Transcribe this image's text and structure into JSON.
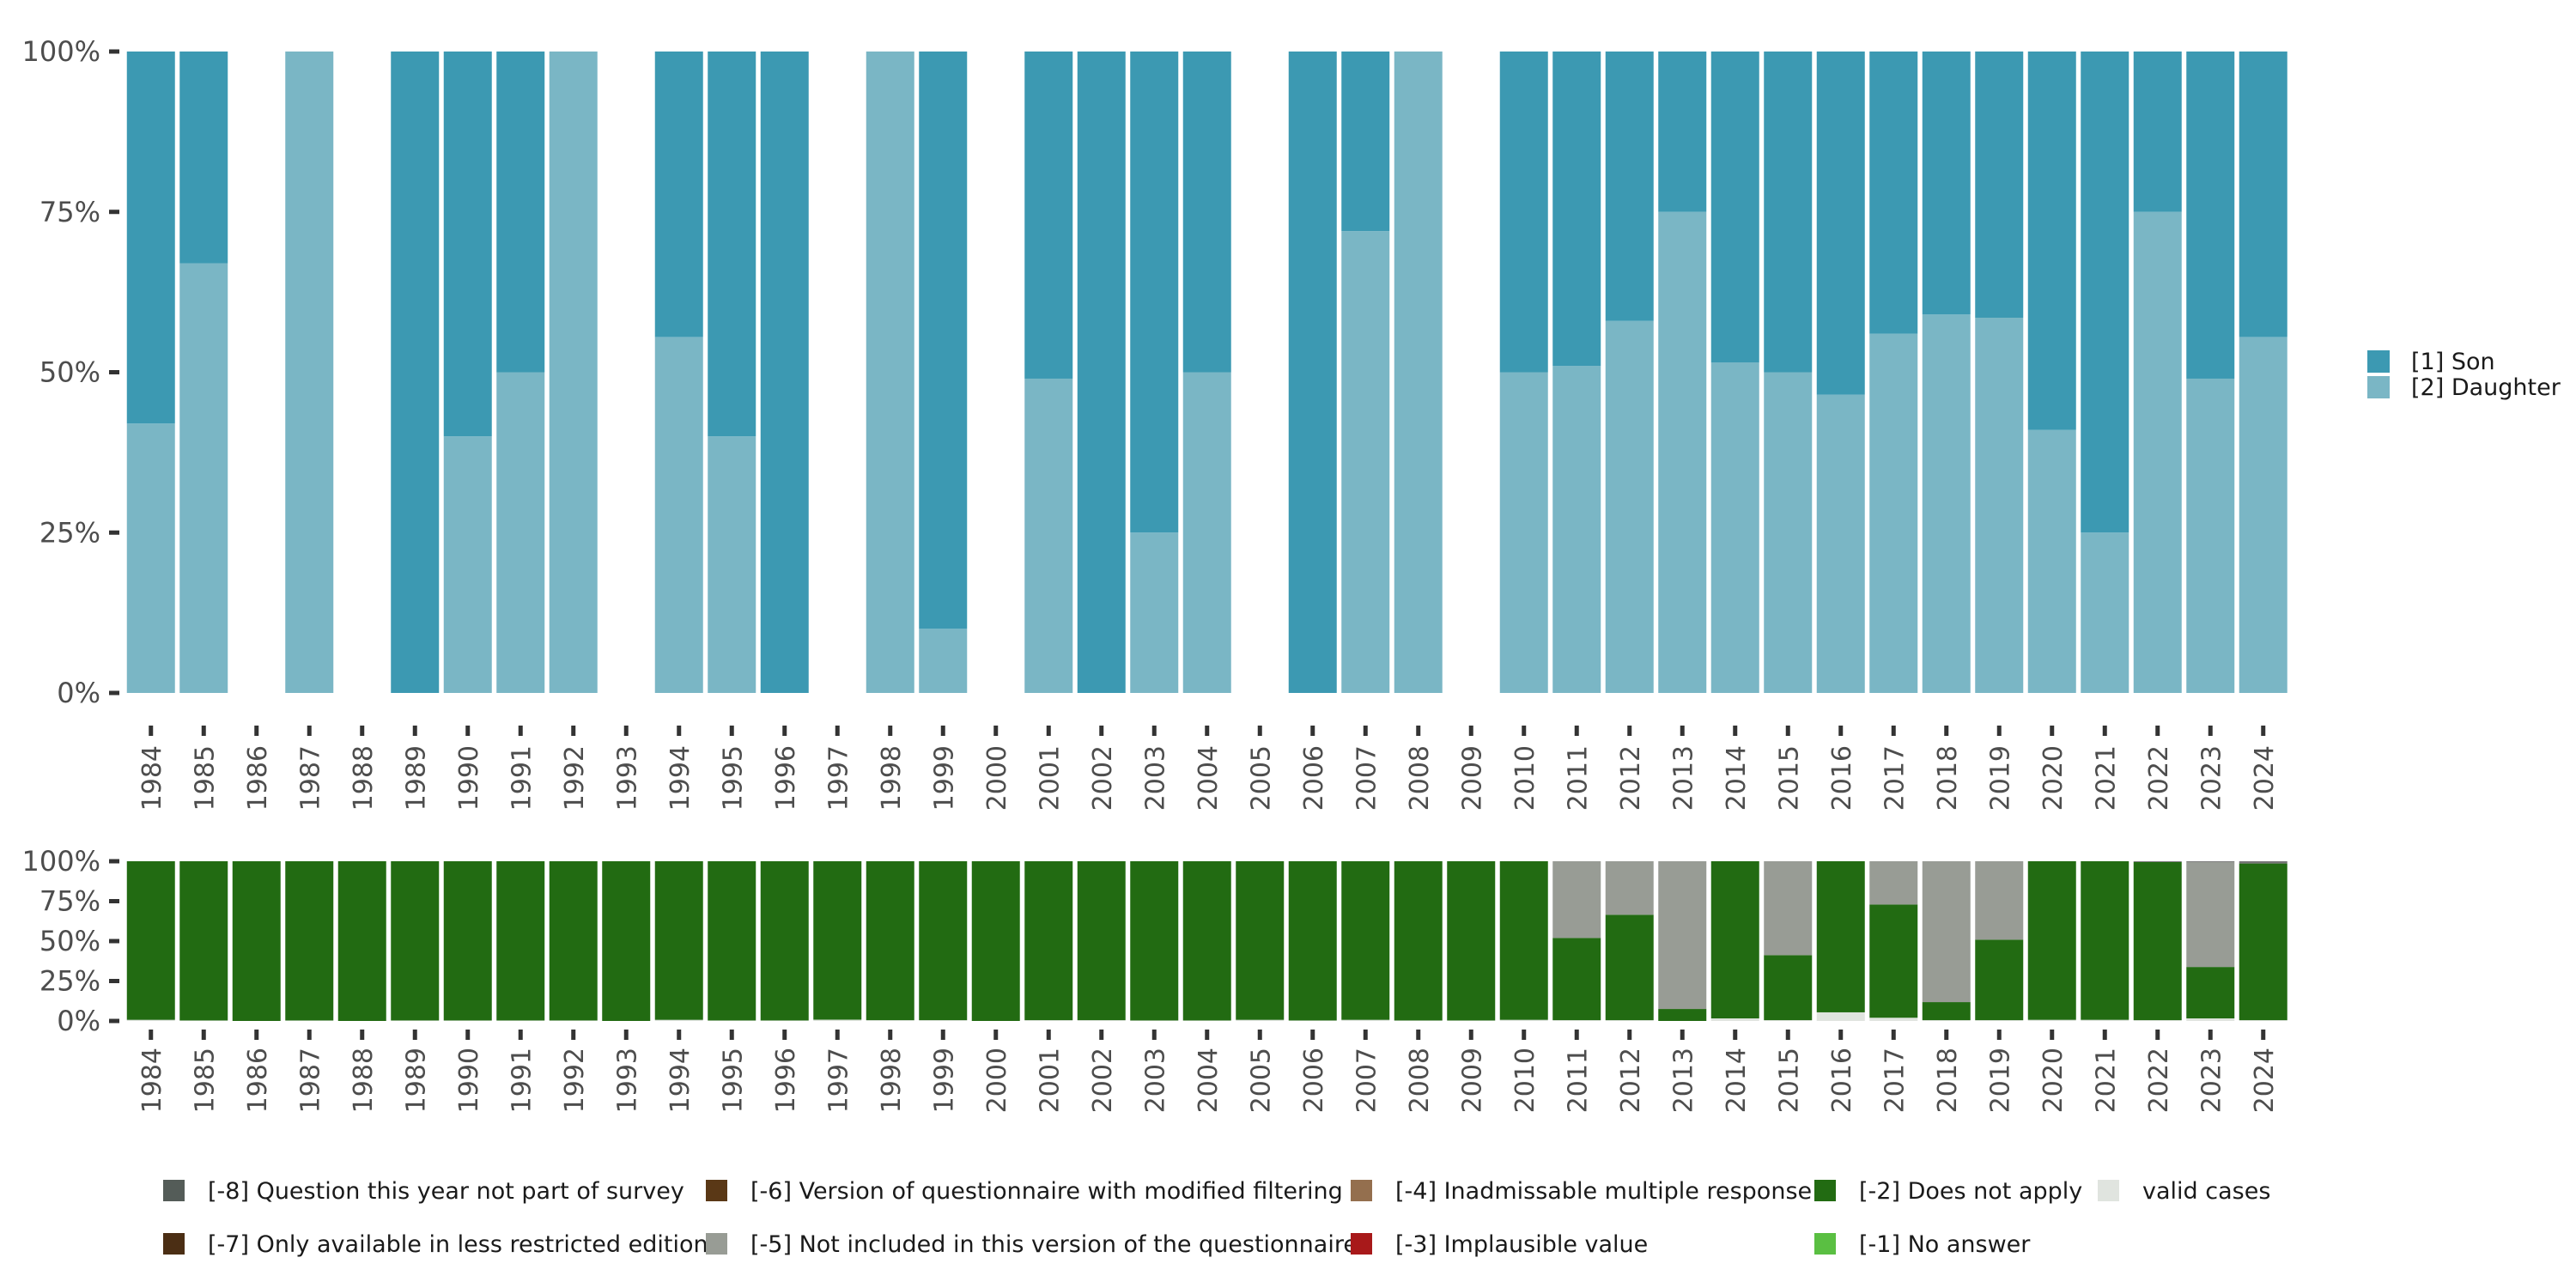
{
  "chart_data": [
    {
      "type": "bar",
      "stacked": true,
      "normalized": true,
      "title": "",
      "xlabel": "",
      "ylabel": "",
      "ylim": [
        0,
        100
      ],
      "yticks": [
        "0%",
        "25%",
        "50%",
        "75%",
        "100%"
      ],
      "grid": false,
      "legend_position": "right",
      "categories": [
        "1984",
        "1985",
        "1986",
        "1987",
        "1988",
        "1989",
        "1990",
        "1991",
        "1992",
        "1993",
        "1994",
        "1995",
        "1996",
        "1997",
        "1998",
        "1999",
        "2000",
        "2001",
        "2002",
        "2003",
        "2004",
        "2005",
        "2006",
        "2007",
        "2008",
        "2009",
        "2010",
        "2011",
        "2012",
        "2013",
        "2014",
        "2015",
        "2016",
        "2017",
        "2018",
        "2019",
        "2020",
        "2021",
        "2022",
        "2023",
        "2024"
      ],
      "series": [
        {
          "name": "[2] Daughter",
          "color": "#7ab6c5",
          "values": [
            42,
            67,
            null,
            100,
            null,
            0,
            40,
            50,
            100,
            null,
            55.5,
            40,
            0,
            null,
            100,
            10,
            null,
            49,
            0,
            25,
            50,
            null,
            0,
            72,
            100,
            null,
            50,
            51,
            58,
            75,
            51.5,
            50,
            46.5,
            56,
            59,
            58.5,
            41,
            25,
            75,
            49,
            55.5
          ]
        },
        {
          "name": "[1] Son",
          "color": "#3c99b2",
          "values": [
            58,
            33,
            null,
            0,
            null,
            100,
            60,
            50,
            0,
            null,
            44.5,
            60,
            100,
            null,
            0,
            90,
            null,
            51,
            100,
            75,
            50,
            null,
            100,
            28,
            0,
            null,
            50,
            49,
            42,
            25,
            48.5,
            50,
            53.5,
            44,
            41,
            41.5,
            59,
            75,
            25,
            51,
            44.5
          ]
        }
      ],
      "legend": [
        "[1] Son",
        "[2] Daughter"
      ]
    },
    {
      "type": "bar",
      "stacked": true,
      "normalized": true,
      "title": "",
      "xlabel": "",
      "ylabel": "",
      "ylim": [
        0,
        100
      ],
      "yticks": [
        "0%",
        "25%",
        "50%",
        "75%",
        "100%"
      ],
      "grid": false,
      "legend_position": "bottom",
      "categories": [
        "1984",
        "1985",
        "1986",
        "1987",
        "1988",
        "1989",
        "1990",
        "1991",
        "1992",
        "1993",
        "1994",
        "1995",
        "1996",
        "1997",
        "1998",
        "1999",
        "2000",
        "2001",
        "2002",
        "2003",
        "2004",
        "2005",
        "2006",
        "2007",
        "2008",
        "2009",
        "2010",
        "2011",
        "2012",
        "2013",
        "2014",
        "2015",
        "2016",
        "2017",
        "2018",
        "2019",
        "2020",
        "2021",
        "2022",
        "2023",
        "2024"
      ],
      "series": [
        {
          "name": "valid cases",
          "color": "#e0e4df",
          "values": [
            0.7,
            0.3,
            0,
            0.3,
            0,
            0.3,
            0.3,
            0.3,
            0.3,
            0,
            0.7,
            0.3,
            0.3,
            0.8,
            0.5,
            0.5,
            0,
            0.5,
            0.5,
            0.3,
            0.3,
            0.7,
            0.3,
            0.7,
            0.3,
            0.3,
            0.7,
            0.5,
            0.5,
            0,
            1.6,
            0.5,
            5.4,
            2,
            0.5,
            0.5,
            0.7,
            0.7,
            0.5,
            1.6,
            0.5
          ]
        },
        {
          "name": "[-2] Does not apply",
          "color": "#226b12",
          "values": [
            99.3,
            99.7,
            100,
            99.7,
            100,
            99.7,
            99.7,
            99.7,
            99.7,
            100,
            99.3,
            99.7,
            99.7,
            99.2,
            99.5,
            99.5,
            100,
            99.5,
            99.5,
            99.7,
            99.7,
            99.3,
            99.7,
            99.3,
            99.7,
            99.7,
            99.3,
            51.5,
            66,
            7.5,
            98.4,
            40.7,
            94.6,
            70.9,
            11.3,
            50.4,
            99.3,
            99.3,
            99,
            32.2,
            98.1
          ]
        },
        {
          "name": "[-5] Not included in this version of the questionnaire",
          "color": "#989c95",
          "values": [
            0,
            0,
            0,
            0,
            0,
            0,
            0,
            0,
            0,
            0,
            0,
            0,
            0,
            0,
            0,
            0,
            0,
            0,
            0,
            0,
            0,
            0,
            0,
            0,
            0,
            0,
            0,
            48,
            33.5,
            92.5,
            0,
            58.8,
            0,
            27.1,
            88.2,
            49.1,
            0,
            0,
            0,
            65.7,
            0
          ]
        },
        {
          "name": "[-8] Question this year not part of survey",
          "color": "#757575",
          "values": [
            0,
            0,
            0,
            0,
            0,
            0,
            0,
            0,
            0,
            0,
            0,
            0,
            0,
            0,
            0,
            0,
            0,
            0,
            0,
            0,
            0,
            0,
            0,
            0,
            0,
            0,
            0,
            0,
            0,
            0,
            0,
            0,
            0,
            0,
            0,
            0,
            0,
            0,
            0.5,
            0.5,
            1.4
          ]
        }
      ],
      "legend": [
        {
          "label": "[-8] Question this year not part of survey",
          "color": "#545c58"
        },
        {
          "label": "[-7] Only available in less restricted edition",
          "color": "#4b2e14"
        },
        {
          "label": "[-6] Version of questionnaire with modified filtering",
          "color": "#5a3816"
        },
        {
          "label": "[-5] Not included in this version of the questionnaire",
          "color": "#989c95"
        },
        {
          "label": "[-4] Inadmissable multiple response",
          "color": "#946f4e"
        },
        {
          "label": "[-3] Implausible value",
          "color": "#a8191a"
        },
        {
          "label": "[-2] Does not apply",
          "color": "#226b12"
        },
        {
          "label": "[-1] No answer",
          "color": "#5abf42"
        },
        {
          "label": "valid cases",
          "color": "#e0e4df"
        }
      ]
    }
  ]
}
